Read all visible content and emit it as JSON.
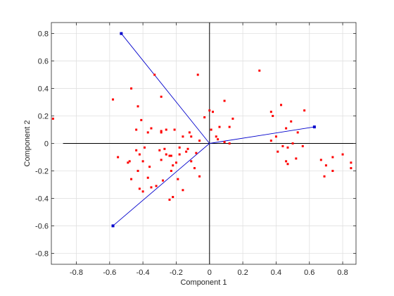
{
  "chart_data": {
    "type": "scatter",
    "xlabel": "Component 1",
    "ylabel": "Component 2",
    "xlim": [
      -0.95,
      0.88
    ],
    "ylim": [
      -0.88,
      0.88
    ],
    "xticks": [
      -0.8,
      -0.6,
      -0.4,
      -0.2,
      0,
      0.2,
      0.4,
      0.6,
      0.8
    ],
    "yticks": [
      -0.8,
      -0.6,
      -0.4,
      -0.2,
      0,
      0.2,
      0.4,
      0.6,
      0.8
    ],
    "xtick_labels": [
      "-0.8",
      "-0.6",
      "-0.4",
      "-0.2",
      "0",
      "0.2",
      "0.4",
      "0.6",
      "0.8"
    ],
    "ytick_labels": [
      "-0.8",
      "-0.6",
      "-0.4",
      "-0.2",
      "0",
      "0.2",
      "0.4",
      "0.6",
      "0.8"
    ],
    "grid": true,
    "colors": {
      "points": "#ff0000",
      "vectors": "#0000cc",
      "axes_lines": "#000000",
      "grid": "#e0e0e0"
    },
    "vectors": [
      {
        "x": -0.53,
        "y": 0.8
      },
      {
        "x": 0.63,
        "y": 0.12
      },
      {
        "x": -0.58,
        "y": -0.6
      }
    ],
    "reference_line_x": [
      -0.88,
      0.88
    ],
    "points": [
      [
        -0.94,
        0.18
      ],
      [
        -0.58,
        0.32
      ],
      [
        -0.47,
        0.4
      ],
      [
        -0.33,
        0.5
      ],
      [
        -0.29,
        0.34
      ],
      [
        -0.43,
        0.27
      ],
      [
        -0.41,
        0.17
      ],
      [
        -0.37,
        0.08
      ],
      [
        -0.44,
        0.1
      ],
      [
        -0.35,
        0.11
      ],
      [
        -0.29,
        0.09
      ],
      [
        -0.26,
        0.1
      ],
      [
        -0.21,
        0.1
      ],
      [
        -0.16,
        0.05
      ],
      [
        -0.12,
        0.08
      ],
      [
        -0.11,
        0.05
      ],
      [
        -0.06,
        0.02
      ],
      [
        -0.07,
        0.5
      ],
      [
        -0.03,
        0.19
      ],
      [
        0.0,
        0.24
      ],
      [
        0.02,
        0.23
      ],
      [
        0.01,
        0.1
      ],
      [
        0.04,
        0.05
      ],
      [
        0.05,
        0.03
      ],
      [
        0.06,
        0.12
      ],
      [
        0.09,
        0.31
      ],
      [
        0.12,
        0.12
      ],
      [
        0.14,
        0.18
      ],
      [
        0.09,
        0.01
      ],
      [
        0.12,
        0.0
      ],
      [
        0.3,
        0.53
      ],
      [
        0.37,
        0.23
      ],
      [
        0.43,
        0.28
      ],
      [
        0.38,
        0.2
      ],
      [
        0.4,
        0.05
      ],
      [
        0.37,
        0.02
      ],
      [
        0.41,
        -0.06
      ],
      [
        0.44,
        -0.02
      ],
      [
        0.46,
        0.11
      ],
      [
        0.49,
        0.16
      ],
      [
        0.53,
        0.08
      ],
      [
        0.57,
        0.24
      ],
      [
        0.56,
        -0.02
      ],
      [
        0.5,
        0.0
      ],
      [
        0.47,
        -0.03
      ],
      [
        0.46,
        -0.13
      ],
      [
        0.47,
        -0.15
      ],
      [
        0.52,
        -0.11
      ],
      [
        0.67,
        -0.12
      ],
      [
        0.7,
        -0.16
      ],
      [
        0.74,
        -0.1
      ],
      [
        0.69,
        -0.24
      ],
      [
        0.74,
        -0.2
      ],
      [
        0.8,
        -0.08
      ],
      [
        0.85,
        -0.14
      ],
      [
        0.85,
        -0.18
      ],
      [
        -0.55,
        -0.1
      ],
      [
        -0.48,
        -0.13
      ],
      [
        -0.47,
        -0.26
      ],
      [
        -0.44,
        -0.05
      ],
      [
        -0.42,
        -0.08
      ],
      [
        -0.4,
        -0.13
      ],
      [
        -0.43,
        -0.2
      ],
      [
        -0.42,
        -0.33
      ],
      [
        -0.4,
        -0.35
      ],
      [
        -0.39,
        -0.03
      ],
      [
        -0.36,
        -0.17
      ],
      [
        -0.37,
        -0.25
      ],
      [
        -0.35,
        -0.32
      ],
      [
        -0.32,
        -0.31
      ],
      [
        -0.3,
        -0.05
      ],
      [
        -0.29,
        -0.12
      ],
      [
        -0.28,
        -0.27
      ],
      [
        -0.26,
        -0.08
      ],
      [
        -0.24,
        -0.09
      ],
      [
        -0.23,
        -0.09
      ],
      [
        -0.23,
        -0.2
      ],
      [
        -0.22,
        -0.16
      ],
      [
        -0.22,
        -0.39
      ],
      [
        -0.2,
        -0.14
      ],
      [
        -0.19,
        -0.26
      ],
      [
        -0.18,
        -0.03
      ],
      [
        -0.16,
        -0.34
      ],
      [
        -0.14,
        -0.06
      ],
      [
        -0.13,
        -0.04
      ],
      [
        -0.11,
        -0.13
      ],
      [
        -0.09,
        -0.18
      ],
      [
        -0.06,
        -0.24
      ],
      [
        -0.18,
        -0.08
      ],
      [
        -0.24,
        -0.41
      ],
      [
        -0.49,
        -0.14
      ],
      [
        -0.27,
        -0.04
      ],
      [
        -0.08,
        -0.07
      ],
      [
        -0.29,
        0.08
      ]
    ]
  }
}
